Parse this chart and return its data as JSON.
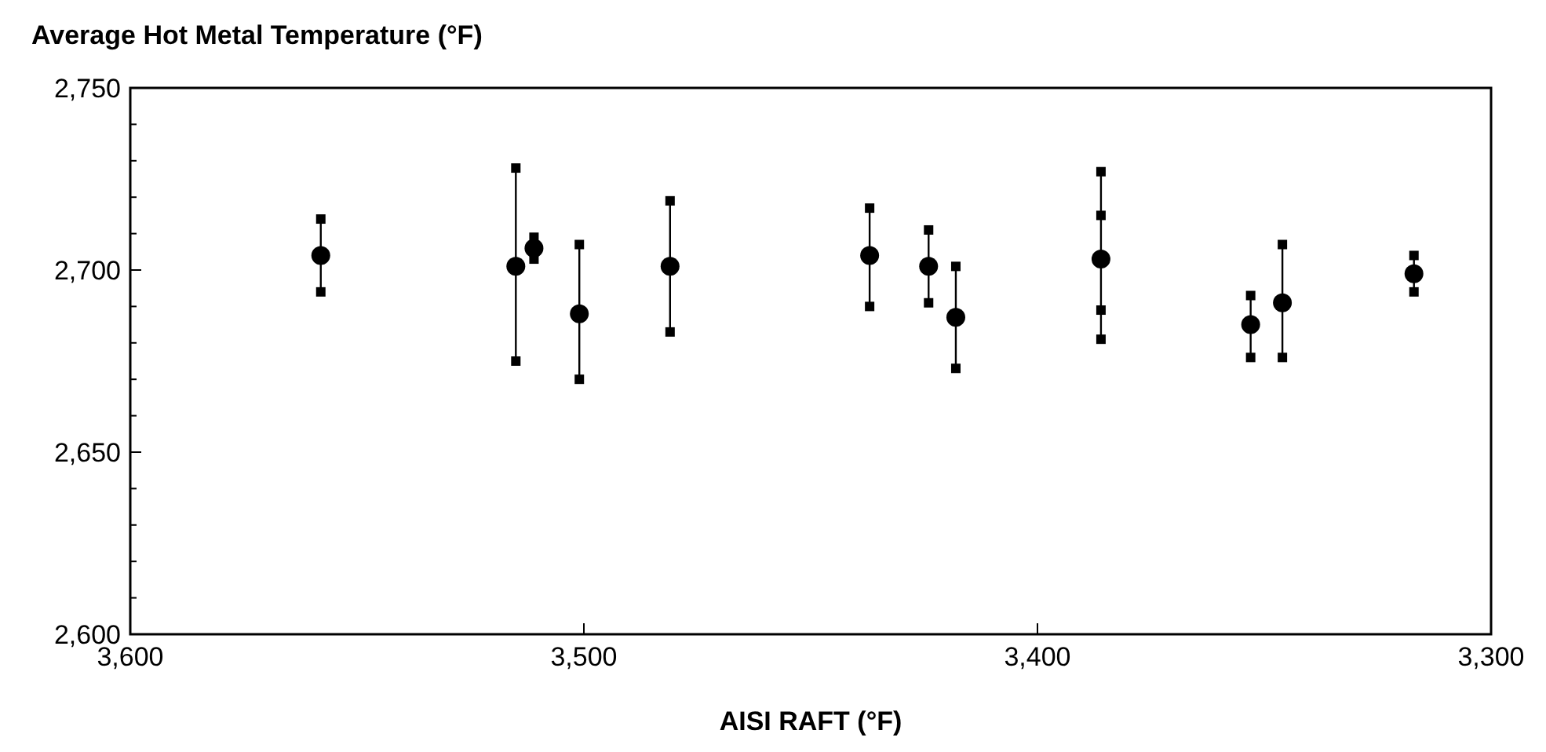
{
  "chart_data": {
    "type": "scatter",
    "title": "Average Hot Metal Temperature (°F)",
    "xlabel": "AISI RAFT (°F)",
    "xlim": [
      3600,
      3300
    ],
    "xticks": [
      {
        "value": 3600,
        "label": "3,600"
      },
      {
        "value": 3500,
        "label": "3,500"
      },
      {
        "value": 3400,
        "label": "3,400"
      },
      {
        "value": 3300,
        "label": "3,300"
      }
    ],
    "ylim": [
      2600,
      2750
    ],
    "yticks": [
      {
        "value": 2600,
        "label": "2,600"
      },
      {
        "value": 2610,
        "label": null
      },
      {
        "value": 2620,
        "label": null
      },
      {
        "value": 2630,
        "label": null
      },
      {
        "value": 2640,
        "label": null
      },
      {
        "value": 2650,
        "label": "2,650"
      },
      {
        "value": 2660,
        "label": null
      },
      {
        "value": 2670,
        "label": null
      },
      {
        "value": 2680,
        "label": null
      },
      {
        "value": 2690,
        "label": null
      },
      {
        "value": 2700,
        "label": "2,700"
      },
      {
        "value": 2710,
        "label": null
      },
      {
        "value": 2720,
        "label": null
      },
      {
        "value": 2730,
        "label": null
      },
      {
        "value": 2740,
        "label": null
      },
      {
        "value": 2750,
        "label": "2,750"
      }
    ],
    "grid": false,
    "series": [
      {
        "color": "#000000",
        "marker": "circle",
        "x": [
          3558,
          3515,
          3511,
          3501,
          3481,
          3437,
          3424,
          3418,
          3386,
          3353,
          3346,
          3317
        ],
        "values": [
          2704,
          2701,
          2706,
          2688,
          2701,
          2704,
          2701,
          2687,
          2703,
          2685,
          2691,
          2699
        ],
        "errors": [
          [
            2694,
            2714
          ],
          [
            2675,
            2728
          ],
          [
            2703,
            2709
          ],
          [
            2670,
            2707
          ],
          [
            2683,
            2719
          ],
          [
            2690,
            2717
          ],
          [
            2691,
            2711
          ],
          [
            2673,
            2701
          ],
          [
            2681,
            2727
          ],
          [
            2676,
            2693
          ],
          [
            2676,
            2707
          ],
          [
            2694,
            2704
          ]
        ]
      },
      {
        "color": "#000000",
        "marker": "square",
        "x": [
          3558,
          3558,
          3515,
          3515,
          3511,
          3511,
          3501,
          3501,
          3481,
          3481,
          3437,
          3437,
          3424,
          3424,
          3418,
          3418,
          3386,
          3386,
          3386,
          3386,
          3353,
          3353,
          3346,
          3346,
          3317,
          3317
        ],
        "values": [
          2694,
          2714,
          2675,
          2728,
          2703,
          2709,
          2670,
          2707,
          2683,
          2719,
          2690,
          2717,
          2691,
          2711,
          2673,
          2701,
          2681,
          2727,
          2715,
          2689,
          2676,
          2693,
          2676,
          2707,
          2694,
          2704
        ]
      }
    ]
  }
}
